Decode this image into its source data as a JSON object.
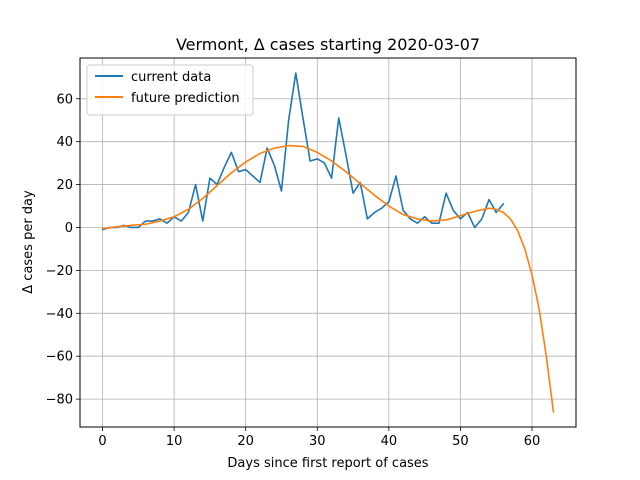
{
  "chart_data": {
    "type": "line",
    "title": "Vermont, Δ cases starting 2020-03-07",
    "xlabel": "Days since first report of cases",
    "ylabel": "Δ cases per day",
    "xlim": [
      -3.15,
      66.15
    ],
    "ylim": [
      -93,
      79
    ],
    "xticks": [
      0,
      10,
      20,
      30,
      40,
      50,
      60
    ],
    "yticks": [
      -80,
      -60,
      -40,
      -20,
      0,
      20,
      40,
      60
    ],
    "grid": true,
    "legend_position": "top-left",
    "series": [
      {
        "name": "current data",
        "color": "#1f77b4",
        "x": [
          0,
          1,
          2,
          3,
          4,
          5,
          6,
          7,
          8,
          9,
          10,
          11,
          12,
          13,
          14,
          15,
          16,
          17,
          18,
          19,
          20,
          21,
          22,
          23,
          24,
          25,
          26,
          27,
          28,
          29,
          30,
          31,
          32,
          33,
          34,
          35,
          36,
          37,
          38,
          39,
          40,
          41,
          42,
          43,
          44,
          45,
          46,
          47,
          48,
          49,
          50,
          51,
          52,
          53,
          54,
          55,
          56
        ],
        "y": [
          -1,
          0,
          0,
          1,
          0,
          0,
          3,
          3,
          4,
          2,
          5,
          3,
          7,
          20,
          3,
          23,
          20,
          28,
          35,
          26,
          27,
          24,
          21,
          37,
          29,
          17,
          50,
          72,
          51,
          31,
          32,
          30,
          23,
          51,
          34,
          16,
          21,
          4,
          7,
          9,
          12,
          24,
          8,
          4,
          2,
          5,
          2,
          2,
          16,
          8,
          4,
          7,
          0,
          4,
          13,
          7,
          11
        ]
      },
      {
        "name": "future prediction",
        "color": "#ff7f0e",
        "x": [
          0,
          2,
          4,
          6,
          8,
          10,
          12,
          14,
          16,
          18,
          20,
          22,
          24,
          26,
          28,
          30,
          32,
          34,
          36,
          38,
          40,
          42,
          44,
          46,
          48,
          50,
          52,
          54,
          55,
          56,
          57,
          58,
          59,
          60,
          61,
          62,
          63
        ],
        "y": [
          -0.5,
          0.3,
          1,
          1.5,
          3,
          5,
          8.5,
          13.5,
          19.5,
          25.5,
          30.5,
          34.5,
          37,
          38.2,
          37.8,
          35,
          31,
          26,
          20.5,
          15,
          10,
          6,
          4,
          3,
          3.5,
          5.5,
          7.5,
          9,
          8.5,
          7,
          4,
          -1.5,
          -10,
          -22,
          -38,
          -60,
          -86
        ]
      }
    ]
  }
}
